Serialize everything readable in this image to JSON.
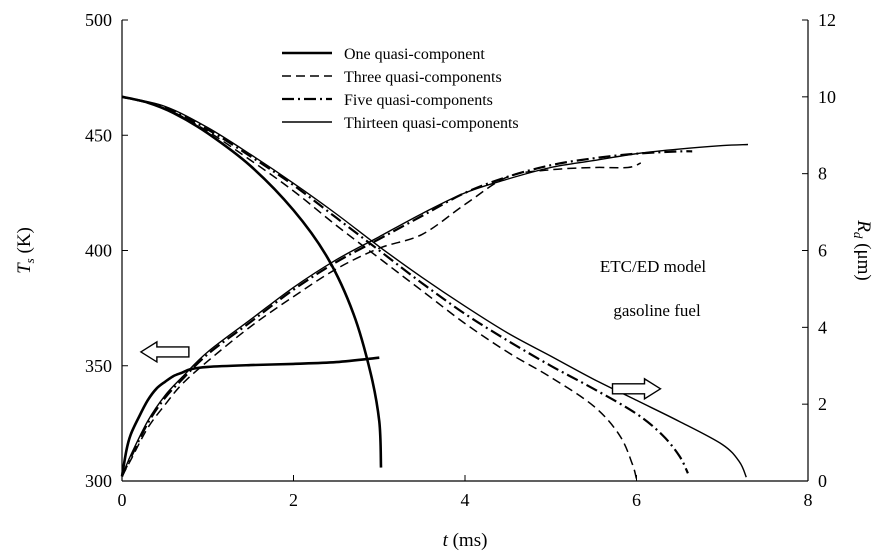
{
  "chart_data": {
    "type": "line",
    "title": "",
    "xlabel": {
      "var": "t",
      "unit": " (ms)"
    },
    "ylabel_left": {
      "var": "T",
      "sub": "s",
      "unit": " (K)"
    },
    "ylabel_right": {
      "var": "R",
      "sub": "d",
      "unit": " (μm)"
    },
    "xlim": [
      0,
      8
    ],
    "ylim_left": [
      300,
      500
    ],
    "ylim_right": [
      0,
      12
    ],
    "xticks": [
      "0",
      "2",
      "4",
      "6",
      "8"
    ],
    "yticks_left": [
      "300",
      "350",
      "400",
      "450",
      "500"
    ],
    "yticks_right": [
      "0",
      "2",
      "4",
      "6",
      "8",
      "10",
      "12"
    ],
    "grid": false,
    "legend_position": "top-center",
    "annotations": [
      "ETC/ED model",
      "gasoline fuel"
    ],
    "arrows": [
      {
        "direction": "left",
        "meaning": "left axis",
        "x": 0.5,
        "y_left": 356
      },
      {
        "direction": "right",
        "meaning": "right axis",
        "x": 6.0,
        "y_left": 340
      }
    ],
    "series": [
      {
        "name": "One quasi-component",
        "style": "solid-thick",
        "axis": "left",
        "points": [
          [
            0,
            302
          ],
          [
            0.05,
            313
          ],
          [
            0.1,
            320
          ],
          [
            0.2,
            328
          ],
          [
            0.3,
            335
          ],
          [
            0.4,
            340
          ],
          [
            0.5,
            343
          ],
          [
            0.6,
            345.5
          ],
          [
            0.7,
            347
          ],
          [
            0.8,
            348.5
          ],
          [
            1.0,
            349.5
          ],
          [
            1.5,
            350.3
          ],
          [
            2.0,
            350.8
          ],
          [
            2.5,
            351.6
          ],
          [
            3.0,
            353.5
          ]
        ]
      },
      {
        "name": "One quasi-component",
        "style": "solid-thick",
        "axis": "right",
        "points": [
          [
            0,
            10.0
          ],
          [
            0.3,
            9.85
          ],
          [
            0.6,
            9.58
          ],
          [
            1.0,
            9.05
          ],
          [
            1.5,
            8.2
          ],
          [
            2.0,
            7.05
          ],
          [
            2.4,
            5.8
          ],
          [
            2.7,
            4.35
          ],
          [
            2.9,
            2.8
          ],
          [
            3.0,
            1.55
          ],
          [
            3.02,
            0.35
          ]
        ]
      },
      {
        "name": "Three quasi-components",
        "style": "dashed",
        "axis": "left",
        "points": [
          [
            0,
            302
          ],
          [
            0.1,
            309
          ],
          [
            0.3,
            323
          ],
          [
            0.5,
            333
          ],
          [
            0.7,
            342
          ],
          [
            1.0,
            352
          ],
          [
            1.5,
            367
          ],
          [
            2.0,
            380
          ],
          [
            2.5,
            392
          ],
          [
            3.0,
            401
          ],
          [
            3.5,
            407
          ],
          [
            4.0,
            420
          ],
          [
            4.5,
            432
          ],
          [
            5.0,
            435
          ],
          [
            5.5,
            436
          ],
          [
            5.9,
            436
          ],
          [
            6.05,
            438
          ]
        ]
      },
      {
        "name": "Three quasi-components",
        "style": "dashed",
        "axis": "right",
        "points": [
          [
            0,
            10.0
          ],
          [
            0.5,
            9.7
          ],
          [
            1.0,
            9.1
          ],
          [
            1.5,
            8.35
          ],
          [
            2.0,
            7.55
          ],
          [
            2.5,
            6.65
          ],
          [
            3.0,
            5.8
          ],
          [
            3.5,
            4.95
          ],
          [
            4.0,
            4.1
          ],
          [
            4.5,
            3.35
          ],
          [
            5.0,
            2.7
          ],
          [
            5.5,
            1.95
          ],
          [
            5.8,
            1.2
          ],
          [
            5.95,
            0.45
          ],
          [
            6.0,
            0.05
          ]
        ]
      },
      {
        "name": "Five quasi-components",
        "style": "dashdot",
        "axis": "left",
        "points": [
          [
            0,
            302
          ],
          [
            0.1,
            310
          ],
          [
            0.3,
            325
          ],
          [
            0.5,
            336
          ],
          [
            0.7,
            344
          ],
          [
            1.0,
            355
          ],
          [
            1.5,
            369
          ],
          [
            2.0,
            383
          ],
          [
            2.5,
            395
          ],
          [
            3.0,
            405
          ],
          [
            3.5,
            415
          ],
          [
            4.0,
            425
          ],
          [
            4.5,
            432
          ],
          [
            5.0,
            437
          ],
          [
            5.5,
            440
          ],
          [
            6.0,
            442
          ],
          [
            6.5,
            443
          ],
          [
            6.65,
            443
          ]
        ]
      },
      {
        "name": "Five quasi-components",
        "style": "dashdot",
        "axis": "right",
        "points": [
          [
            0,
            10.0
          ],
          [
            0.5,
            9.72
          ],
          [
            1.0,
            9.15
          ],
          [
            1.5,
            8.45
          ],
          [
            2.0,
            7.7
          ],
          [
            2.5,
            6.85
          ],
          [
            3.0,
            6.0
          ],
          [
            3.5,
            5.15
          ],
          [
            4.0,
            4.35
          ],
          [
            4.5,
            3.65
          ],
          [
            5.0,
            3.0
          ],
          [
            5.5,
            2.4
          ],
          [
            6.0,
            1.75
          ],
          [
            6.3,
            1.2
          ],
          [
            6.5,
            0.65
          ],
          [
            6.6,
            0.2
          ]
        ]
      },
      {
        "name": "Thirteen quasi-components",
        "style": "solid-thin",
        "axis": "left",
        "points": [
          [
            0,
            302
          ],
          [
            0.1,
            311
          ],
          [
            0.3,
            326
          ],
          [
            0.5,
            337
          ],
          [
            0.7,
            345
          ],
          [
            1.0,
            356
          ],
          [
            1.5,
            370
          ],
          [
            2.0,
            384
          ],
          [
            2.5,
            396
          ],
          [
            3.0,
            406
          ],
          [
            3.5,
            416
          ],
          [
            4.0,
            425
          ],
          [
            4.5,
            431
          ],
          [
            5.0,
            436
          ],
          [
            5.5,
            439
          ],
          [
            6.0,
            442
          ],
          [
            6.5,
            444
          ],
          [
            7.0,
            445.5
          ],
          [
            7.3,
            446
          ]
        ]
      },
      {
        "name": "Thirteen quasi-components",
        "style": "solid-thin",
        "axis": "right",
        "points": [
          [
            0,
            10.0
          ],
          [
            0.5,
            9.75
          ],
          [
            1.0,
            9.2
          ],
          [
            1.5,
            8.5
          ],
          [
            2.0,
            7.75
          ],
          [
            2.5,
            6.95
          ],
          [
            3.0,
            6.1
          ],
          [
            3.5,
            5.3
          ],
          [
            4.0,
            4.55
          ],
          [
            4.5,
            3.85
          ],
          [
            5.0,
            3.25
          ],
          [
            5.5,
            2.65
          ],
          [
            6.0,
            2.1
          ],
          [
            6.5,
            1.55
          ],
          [
            7.0,
            0.95
          ],
          [
            7.2,
            0.5
          ],
          [
            7.28,
            0.1
          ]
        ]
      }
    ]
  }
}
